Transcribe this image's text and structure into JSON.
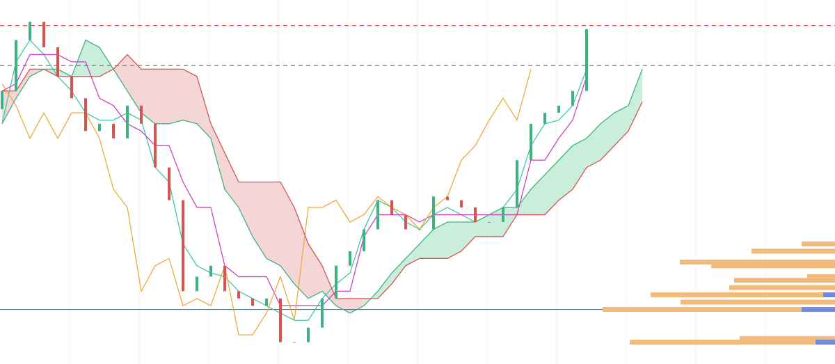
{
  "chart_data": {
    "type": "candlestick",
    "categories": [
      null,
      null,
      null,
      null,
      null,
      null,
      null,
      null,
      null,
      null,
      null,
      null,
      null,
      null,
      null,
      null,
      null,
      null,
      null,
      null,
      null,
      null,
      null,
      null,
      null,
      null,
      null,
      null,
      null,
      null,
      null,
      null,
      null,
      null,
      null,
      null,
      null,
      null,
      null,
      null,
      null,
      null,
      null,
      null,
      null,
      null,
      null
    ],
    "open": [
      70,
      75,
      89,
      94,
      87,
      79,
      73,
      64,
      66,
      62,
      71,
      66,
      54,
      45,
      20,
      24,
      27,
      20,
      18,
      16,
      18,
      6,
      6,
      10,
      18,
      27,
      31,
      37,
      45,
      41,
      37,
      37,
      46,
      45,
      43,
      39,
      39,
      43,
      56,
      66,
      69,
      71,
      75,
      null,
      null,
      null,
      null
    ],
    "close": [
      75,
      89,
      94,
      87,
      79,
      73,
      64,
      66,
      62,
      71,
      66,
      54,
      45,
      20,
      24,
      27,
      20,
      18,
      16,
      18,
      6,
      6,
      10,
      18,
      27,
      31,
      37,
      45,
      41,
      37,
      37,
      46,
      45,
      43,
      39,
      39,
      43,
      56,
      66,
      69,
      71,
      75,
      92,
      null,
      null,
      null,
      null
    ],
    "up_color": "#3fb37f",
    "down_color": "#d9534f",
    "series": [
      {
        "color": "#3ec9a7",
        "values": [
          66,
          83,
          89,
          85,
          79,
          75,
          69,
          67,
          67,
          69,
          67,
          54,
          50,
          33,
          27,
          25,
          24,
          20,
          18,
          16,
          14,
          12,
          12,
          18,
          22,
          25,
          37,
          45,
          43,
          39,
          37,
          41,
          43,
          41,
          39,
          41,
          43,
          48,
          60,
          66,
          67,
          71,
          81,
          null,
          null,
          null,
          null
        ]
      },
      {
        "color": "#d03fbf",
        "values": [
          75,
          77,
          85,
          85,
          85,
          83,
          83,
          73,
          71,
          66,
          64,
          60,
          60,
          50,
          43,
          43,
          27,
          24,
          24,
          24,
          16,
          16,
          16,
          16,
          20,
          20,
          35,
          41,
          41,
          41,
          39,
          41,
          41,
          41,
          41,
          41,
          41,
          41,
          56,
          56,
          62,
          67,
          79,
          null,
          null,
          null,
          null
        ]
      },
      {
        "color": "#f0a93b",
        "values": [
          77,
          71,
          62,
          69,
          62,
          69,
          69,
          62,
          48,
          43,
          20,
          27,
          29,
          16,
          18,
          16,
          27,
          8,
          8,
          14,
          24,
          12,
          43,
          43,
          45,
          39,
          41,
          46,
          43,
          41,
          37,
          43,
          46,
          56,
          60,
          67,
          73,
          67,
          81,
          null,
          null,
          null,
          null,
          null,
          null,
          null,
          null
        ]
      },
      {
        "color": "#3fb37f",
        "values": [
          66,
          73,
          79,
          81,
          81,
          79,
          89,
          87,
          81,
          75,
          69,
          66,
          66,
          67,
          66,
          62,
          48,
          43,
          35,
          29,
          27,
          22,
          18,
          20,
          16,
          14,
          16,
          20,
          25,
          29,
          33,
          37,
          39,
          39,
          39,
          41,
          43,
          43,
          48,
          52,
          56,
          60,
          62,
          66,
          69,
          71,
          81
        ]
      },
      {
        "color": "#d9534f",
        "values": [
          75,
          75,
          81,
          81,
          79,
          79,
          79,
          79,
          81,
          85,
          81,
          81,
          81,
          81,
          79,
          66,
          58,
          50,
          50,
          50,
          50,
          43,
          33,
          27,
          18,
          18,
          18,
          18,
          22,
          27,
          29,
          29,
          29,
          31,
          35,
          35,
          35,
          41,
          41,
          41,
          45,
          48,
          54,
          56,
          60,
          64,
          72
        ]
      }
    ],
    "cloud_up_color": "#c9eedc",
    "cloud_down_color": "#f5d6d6",
    "hlines": [
      {
        "value": 93,
        "color": "#e0474c",
        "dash": true
      },
      {
        "value": 82,
        "color": "#777777",
        "dash": true
      },
      {
        "value": 15,
        "color": "#4a6a7a",
        "dash": false
      }
    ],
    "volume_profile": {
      "levels": [
        33,
        31,
        28,
        27,
        24,
        23,
        21,
        19,
        17,
        15,
        7,
        6
      ],
      "volumes": [
        48,
        120,
        223,
        178,
        40,
        145,
        152,
        265,
        222,
        334,
        137,
        295
      ],
      "highlight_volumes": [
        0,
        0,
        0,
        0,
        0,
        0,
        0,
        17,
        0,
        48,
        0,
        28
      ],
      "color": "#f2bb7c",
      "highlight_color": "#6f8be0"
    },
    "ylim": [
      0,
      100
    ]
  }
}
